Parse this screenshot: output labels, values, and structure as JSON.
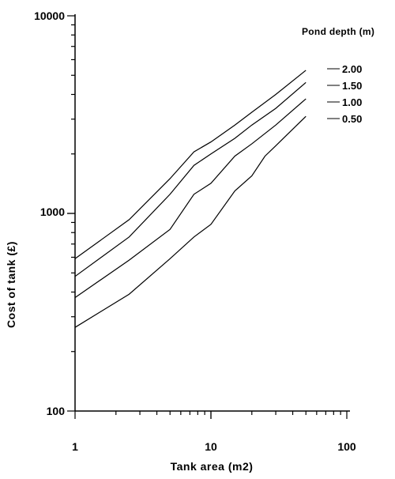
{
  "chart_data": {
    "type": "line",
    "title": "",
    "xlabel": "Tank area (m2)",
    "ylabel": "Cost of tank (£)",
    "x_scale": "log",
    "y_scale": "log",
    "xlim": [
      1,
      100
    ],
    "ylim": [
      100,
      10000
    ],
    "x_tick_labels": [
      "1",
      "10",
      "100"
    ],
    "y_tick_labels": [
      "100",
      "1000",
      "10000"
    ],
    "grid": false,
    "legend_title": "Pond depth (m)",
    "legend_position": "right",
    "series": [
      {
        "name": "2.00",
        "x": [
          1,
          2.5,
          5,
          7.5,
          10,
          15,
          20,
          30,
          50
        ],
        "y": [
          590,
          930,
          1500,
          2050,
          2300,
          2800,
          3250,
          4000,
          5300
        ]
      },
      {
        "name": "1.50",
        "x": [
          1,
          2.5,
          5,
          7.5,
          10,
          15,
          20,
          30,
          50
        ],
        "y": [
          480,
          760,
          1250,
          1750,
          2000,
          2400,
          2800,
          3400,
          4600
        ]
      },
      {
        "name": "1.00",
        "x": [
          1,
          2.5,
          5,
          7.5,
          10,
          15,
          20,
          30,
          50
        ],
        "y": [
          375,
          580,
          830,
          1250,
          1420,
          1950,
          2250,
          2800,
          3800
        ]
      },
      {
        "name": "0.50",
        "x": [
          1,
          2.5,
          5,
          7.5,
          10,
          15,
          20,
          25,
          30,
          50
        ],
        "y": [
          265,
          390,
          590,
          760,
          880,
          1300,
          1550,
          1950,
          2200,
          3100
        ]
      }
    ]
  }
}
